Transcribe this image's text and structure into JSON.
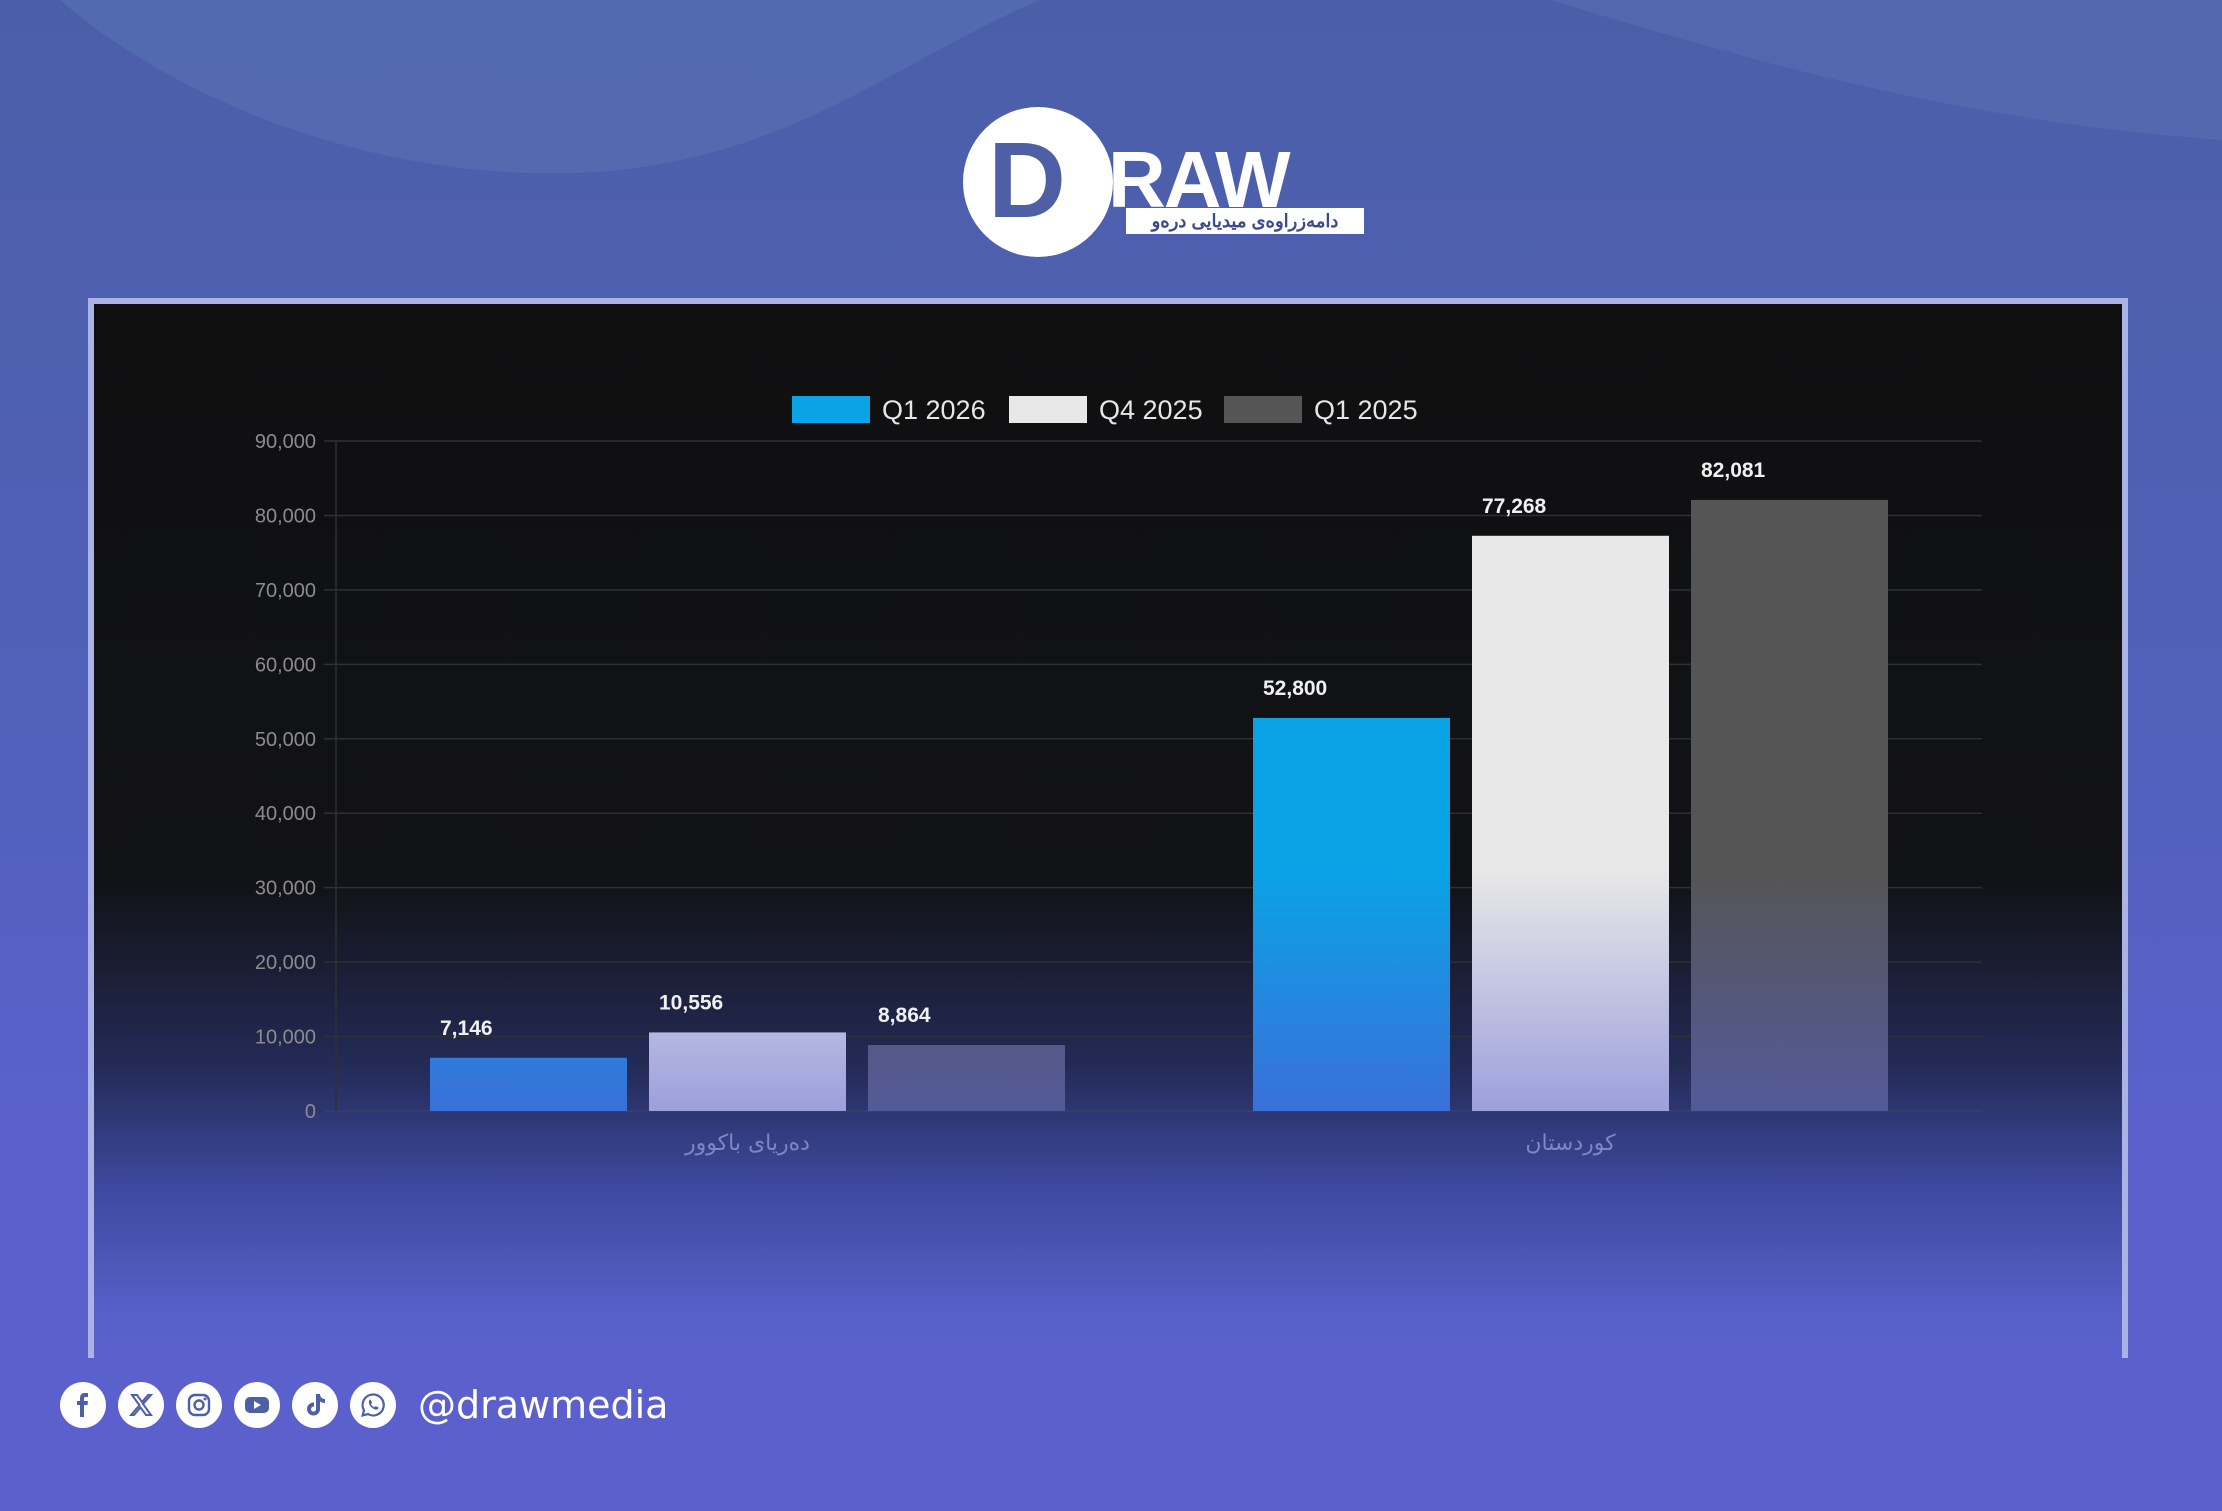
{
  "brand": {
    "name_first": "D",
    "name_rest": "RAW",
    "tagline": "دامەزراوەی میدیایی درەو",
    "handle": "@drawmedia"
  },
  "social_icons": [
    "facebook-icon",
    "x-icon",
    "instagram-icon",
    "youtube-icon",
    "tiktok-icon",
    "whatsapp-icon"
  ],
  "colors": {
    "q1_2026": "#0aa3e6",
    "q4_2025": "#e8e8e8",
    "q1_2025": "#555555",
    "background": "#5560c4"
  },
  "chart_data": {
    "type": "bar",
    "categories": [
      "دەریای باکوور",
      "کوردستان"
    ],
    "series": [
      {
        "name": "Q1 2026",
        "values": [
          7146,
          52800
        ]
      },
      {
        "name": "Q4 2025",
        "values": [
          10556,
          77268
        ]
      },
      {
        "name": "Q1 2025",
        "values": [
          8864,
          82081
        ]
      }
    ],
    "data_labels": [
      [
        "7,146",
        "10,556",
        "8,864"
      ],
      [
        "52,800",
        "77,268",
        "82,081"
      ]
    ],
    "ylim": [
      0,
      90000
    ],
    "y_ticks": [
      "0",
      "10,000",
      "20,000",
      "30,000",
      "40,000",
      "50,000",
      "60,000",
      "70,000",
      "80,000",
      "90,000"
    ],
    "grid": true,
    "legend": "top-center"
  }
}
